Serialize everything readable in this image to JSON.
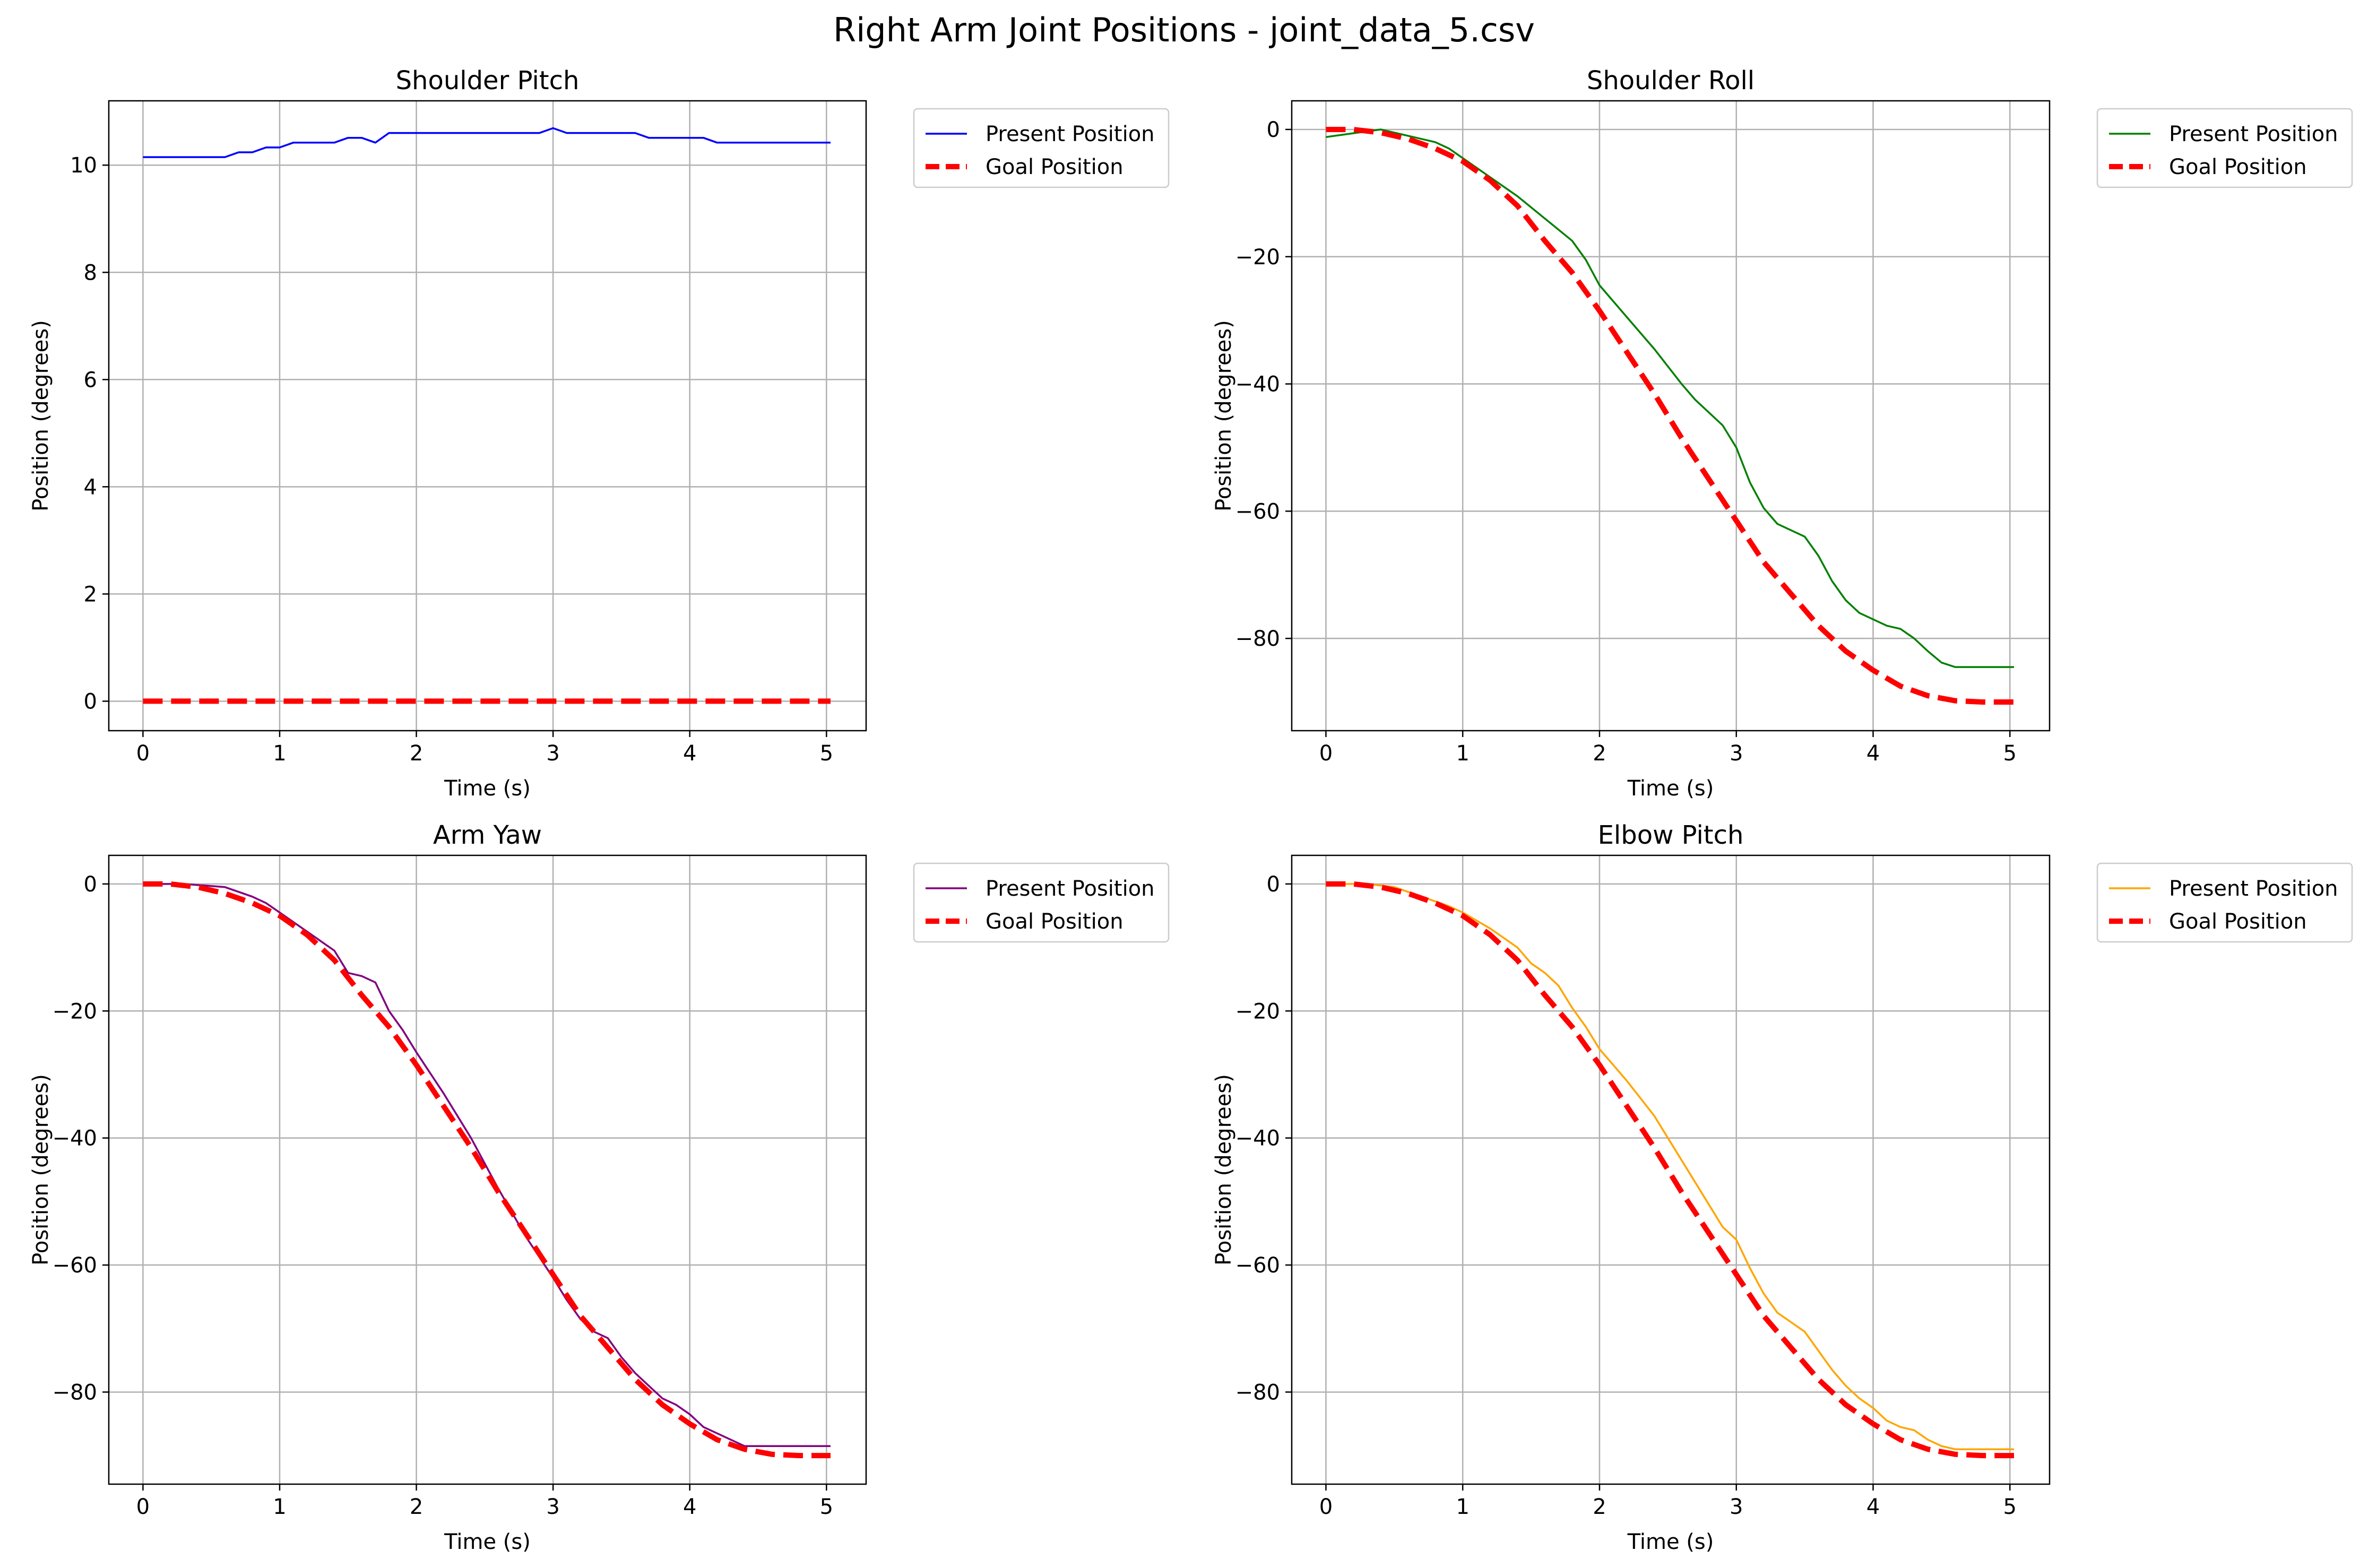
{
  "figure": {
    "title": "Right Arm Joint Positions - joint_data_5.csv"
  },
  "chart_data": [
    {
      "type": "line",
      "title": "Shoulder Pitch",
      "xlabel": "Time (s)",
      "ylabel": "Position (degrees)",
      "xlim": [
        -0.25,
        5.29
      ],
      "ylim": [
        -0.55,
        11.2
      ],
      "xticks": [
        0,
        1,
        2,
        3,
        4,
        5
      ],
      "xtick_labels": [
        "0",
        "1",
        "2",
        "3",
        "4",
        "5"
      ],
      "yticks": [
        0,
        2,
        4,
        6,
        8,
        10
      ],
      "ytick_labels": [
        "0",
        "2",
        "4",
        "6",
        "8",
        "10"
      ],
      "grid": true,
      "legend_position": "outside-upper-right",
      "series": [
        {
          "name": "Present Position",
          "color": "#0000ff",
          "style": "solid",
          "x": [
            0,
            0.6,
            0.7,
            0.8,
            0.9,
            1.0,
            1.1,
            1.2,
            1.3,
            1.4,
            1.5,
            1.6,
            1.7,
            1.8,
            1.9,
            2.9,
            3.0,
            3.1,
            3.6,
            3.7,
            4.1,
            4.2,
            5.03
          ],
          "y": [
            10.15,
            10.15,
            10.24,
            10.24,
            10.33,
            10.33,
            10.42,
            10.42,
            10.42,
            10.42,
            10.51,
            10.51,
            10.42,
            10.6,
            10.6,
            10.6,
            10.69,
            10.6,
            10.6,
            10.51,
            10.51,
            10.42,
            10.42
          ]
        },
        {
          "name": "Goal Position",
          "color": "#ff0000",
          "style": "dashed",
          "x": [
            0,
            5.03
          ],
          "y": [
            0,
            0
          ]
        }
      ]
    },
    {
      "type": "line",
      "title": "Shoulder Roll",
      "xlabel": "Time (s)",
      "ylabel": "Position (degrees)",
      "xlim": [
        -0.25,
        5.29
      ],
      "ylim": [
        -94.5,
        4.5
      ],
      "xticks": [
        0,
        1,
        2,
        3,
        4,
        5
      ],
      "xtick_labels": [
        "0",
        "1",
        "2",
        "3",
        "4",
        "5"
      ],
      "yticks": [
        0,
        -20,
        -40,
        -60,
        -80
      ],
      "ytick_labels": [
        "0",
        "−20",
        "−40",
        "−60",
        "−80"
      ],
      "grid": true,
      "legend_position": "outside-upper-right",
      "series": [
        {
          "name": "Present Position",
          "color": "#008000",
          "style": "solid",
          "x": [
            0,
            0.2,
            0.3,
            0.4,
            0.6,
            0.8,
            0.9,
            1.0,
            1.2,
            1.4,
            1.6,
            1.8,
            1.9,
            2.0,
            2.2,
            2.4,
            2.6,
            2.7,
            2.8,
            2.9,
            3.0,
            3.1,
            3.2,
            3.3,
            3.5,
            3.6,
            3.7,
            3.8,
            3.9,
            4.0,
            4.1,
            4.2,
            4.3,
            4.4,
            4.5,
            4.6,
            5.03
          ],
          "y": [
            -1.2,
            -0.6,
            -0.3,
            0,
            -1.0,
            -2.0,
            -3.0,
            -4.5,
            -7.5,
            -10.5,
            -14,
            -17.5,
            -20.5,
            -24.5,
            -29.5,
            -34.5,
            -40,
            -42.5,
            -44.5,
            -46.5,
            -50,
            -55.5,
            -59.5,
            -62,
            -64,
            -67,
            -71,
            -74,
            -76,
            -77,
            -78,
            -78.5,
            -80,
            -82,
            -83.8,
            -84.5,
            -84.5
          ]
        },
        {
          "name": "Goal Position",
          "color": "#ff0000",
          "style": "dashed",
          "x": [
            0,
            0.2,
            0.4,
            0.6,
            0.8,
            1.0,
            1.2,
            1.4,
            1.6,
            1.8,
            2.0,
            2.2,
            2.4,
            2.6,
            2.8,
            3.0,
            3.2,
            3.4,
            3.6,
            3.8,
            4.0,
            4.2,
            4.4,
            4.6,
            4.8,
            5.03
          ],
          "y": [
            0,
            0,
            -0.5,
            -1.5,
            -3,
            -5,
            -8,
            -12,
            -17.5,
            -22.5,
            -28.5,
            -35,
            -41.5,
            -48.5,
            -55,
            -61.5,
            -68,
            -73,
            -78,
            -82,
            -85,
            -87.5,
            -89,
            -89.8,
            -90,
            -90
          ]
        }
      ]
    },
    {
      "type": "line",
      "title": "Arm Yaw",
      "xlabel": "Time (s)",
      "ylabel": "Position (degrees)",
      "xlim": [
        -0.25,
        5.29
      ],
      "ylim": [
        -94.5,
        4.5
      ],
      "xticks": [
        0,
        1,
        2,
        3,
        4,
        5
      ],
      "xtick_labels": [
        "0",
        "1",
        "2",
        "3",
        "4",
        "5"
      ],
      "yticks": [
        0,
        -20,
        -40,
        -60,
        -80
      ],
      "ytick_labels": [
        "0",
        "−20",
        "−40",
        "−60",
        "−80"
      ],
      "grid": true,
      "legend_position": "outside-upper-right",
      "series": [
        {
          "name": "Present Position",
          "color": "#800080",
          "style": "solid",
          "x": [
            0,
            0.3,
            0.6,
            0.8,
            0.9,
            1.0,
            1.2,
            1.4,
            1.5,
            1.6,
            1.7,
            1.8,
            1.9,
            2.0,
            2.2,
            2.4,
            2.6,
            2.8,
            3.0,
            3.1,
            3.2,
            3.3,
            3.4,
            3.5,
            3.6,
            3.7,
            3.8,
            3.9,
            4.0,
            4.1,
            4.2,
            4.3,
            4.4,
            4.5,
            4.6,
            5.03
          ],
          "y": [
            0,
            0,
            -0.5,
            -2,
            -3,
            -4.5,
            -7.5,
            -10.5,
            -14,
            -14.5,
            -15.5,
            -20,
            -23,
            -26.5,
            -33,
            -40,
            -48,
            -55.5,
            -62,
            -65.5,
            -68.5,
            -70.5,
            -71.5,
            -74.5,
            -77,
            -79,
            -81,
            -82,
            -83.5,
            -85.5,
            -86.5,
            -87.5,
            -88.5,
            -88.5,
            -88.5,
            -88.5
          ]
        },
        {
          "name": "Goal Position",
          "color": "#ff0000",
          "style": "dashed",
          "x": [
            0,
            0.2,
            0.4,
            0.6,
            0.8,
            1.0,
            1.2,
            1.4,
            1.6,
            1.8,
            2.0,
            2.2,
            2.4,
            2.6,
            2.8,
            3.0,
            3.2,
            3.4,
            3.6,
            3.8,
            4.0,
            4.2,
            4.4,
            4.6,
            4.8,
            5.03
          ],
          "y": [
            0,
            0,
            -0.5,
            -1.5,
            -3,
            -5,
            -8,
            -12,
            -17.5,
            -22.5,
            -28.5,
            -35,
            -41.5,
            -48.5,
            -55,
            -61.5,
            -68,
            -73,
            -78,
            -82,
            -85,
            -87.5,
            -89,
            -89.8,
            -90,
            -90
          ]
        }
      ]
    },
    {
      "type": "line",
      "title": "Elbow Pitch",
      "xlabel": "Time (s)",
      "ylabel": "Position (degrees)",
      "xlim": [
        -0.25,
        5.29
      ],
      "ylim": [
        -94.5,
        4.5
      ],
      "xticks": [
        0,
        1,
        2,
        3,
        4,
        5
      ],
      "xtick_labels": [
        "0",
        "1",
        "2",
        "3",
        "4",
        "5"
      ],
      "yticks": [
        0,
        -20,
        -40,
        -60,
        -80
      ],
      "ytick_labels": [
        "0",
        "−20",
        "−40",
        "−60",
        "−80"
      ],
      "grid": true,
      "legend_position": "outside-upper-right",
      "series": [
        {
          "name": "Present Position",
          "color": "#ffa500",
          "style": "solid",
          "x": [
            0,
            0.3,
            0.5,
            0.7,
            0.9,
            1.0,
            1.2,
            1.4,
            1.5,
            1.6,
            1.7,
            1.8,
            1.9,
            2.0,
            2.2,
            2.4,
            2.6,
            2.8,
            2.9,
            3.0,
            3.1,
            3.2,
            3.3,
            3.5,
            3.6,
            3.7,
            3.8,
            3.9,
            4.0,
            4.1,
            4.2,
            4.3,
            4.4,
            4.5,
            4.6,
            4.8,
            5.03
          ],
          "y": [
            0,
            0,
            -0.5,
            -2,
            -3.5,
            -4.5,
            -7,
            -10,
            -12.5,
            -14,
            -16,
            -19.5,
            -22.5,
            -26,
            -31,
            -36.5,
            -43.5,
            -50.5,
            -54,
            -56,
            -60.5,
            -64.5,
            -67.5,
            -70.5,
            -73.5,
            -76.5,
            -79,
            -81,
            -82.5,
            -84.5,
            -85.5,
            -86,
            -87.5,
            -88.5,
            -89,
            -89,
            -89
          ]
        },
        {
          "name": "Goal Position",
          "color": "#ff0000",
          "style": "dashed",
          "x": [
            0,
            0.2,
            0.4,
            0.6,
            0.8,
            1.0,
            1.2,
            1.4,
            1.6,
            1.8,
            2.0,
            2.2,
            2.4,
            2.6,
            2.8,
            3.0,
            3.2,
            3.4,
            3.6,
            3.8,
            4.0,
            4.2,
            4.4,
            4.6,
            4.8,
            5.03
          ],
          "y": [
            0,
            0,
            -0.5,
            -1.5,
            -3,
            -5,
            -8,
            -12,
            -17.5,
            -22.5,
            -28.5,
            -35,
            -41.5,
            -48.5,
            -55,
            -61.5,
            -68,
            -73,
            -78,
            -82,
            -85,
            -87.5,
            -89,
            -89.8,
            -90,
            -90
          ]
        }
      ]
    }
  ]
}
